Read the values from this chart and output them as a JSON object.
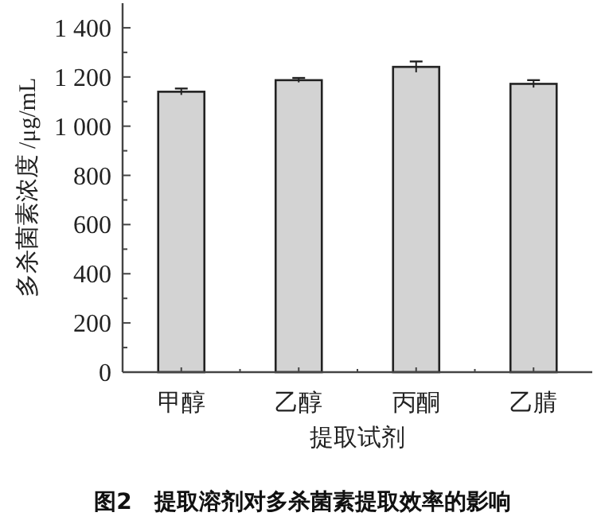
{
  "chart_data": {
    "type": "bar",
    "title": "图2　提取溶剂对多杀菌素提取效率的影响",
    "xlabel": "提取试剂",
    "ylabel": "多杀菌素浓度 /μg/mL",
    "categories": [
      "甲醇",
      "乙醇",
      "丙酮",
      "乙腈"
    ],
    "values": [
      1140,
      1187,
      1241,
      1172
    ],
    "errors": [
      13,
      9,
      22,
      15
    ],
    "color": "#d3d3d3",
    "ylim": [
      0,
      1500
    ],
    "yticks": [
      0,
      {
        "value": 100,
        "label": null
      },
      200,
      {
        "value": 300,
        "label": null
      },
      400,
      {
        "value": 500,
        "label": null
      },
      600,
      {
        "value": 700,
        "label": null
      },
      800,
      {
        "value": 900,
        "label": null
      },
      {
        "value": 1000,
        "label": "1 000"
      },
      {
        "value": 1100,
        "label": null
      },
      {
        "value": 1200,
        "label": "1 200"
      },
      {
        "value": 1300,
        "label": null
      },
      {
        "value": 1400,
        "label": "1 400"
      }
    ],
    "grid": false
  }
}
